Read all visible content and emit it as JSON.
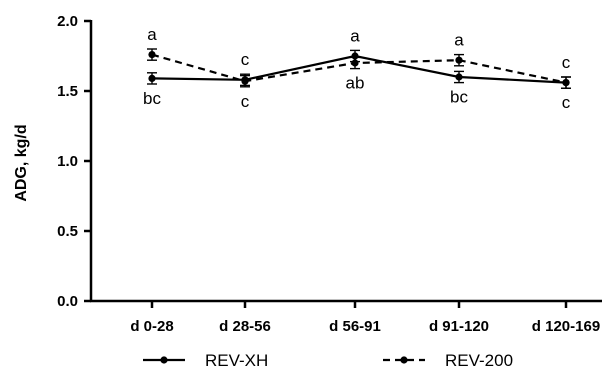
{
  "chart_data": {
    "type": "line",
    "categories": [
      "d 0-28",
      "d 28-56",
      "d 56-91",
      "d 91-120",
      "d 120-169"
    ],
    "ylabel": "ADG, kg/d",
    "xlabel": "",
    "ylim": [
      0.0,
      2.0
    ],
    "yticks": [
      "0.0",
      "0.5",
      "1.0",
      "1.5",
      "2.0"
    ],
    "series": [
      {
        "name": "REV-XH",
        "style": "solid",
        "values": [
          1.59,
          1.58,
          1.75,
          1.6,
          1.56
        ],
        "errors": [
          0.04,
          0.04,
          0.04,
          0.04,
          0.04
        ],
        "letters": [
          "bc",
          "c",
          "a",
          "bc",
          "c"
        ]
      },
      {
        "name": "REV-200",
        "style": "dashed",
        "values": [
          1.76,
          1.57,
          1.7,
          1.72,
          1.56
        ],
        "errors": [
          0.04,
          0.04,
          0.04,
          0.04,
          0.04
        ],
        "letters": [
          "a",
          "c",
          "ab",
          "a",
          "c"
        ]
      }
    ],
    "legend_position": "bottom",
    "grid": false,
    "color": "#000000"
  }
}
